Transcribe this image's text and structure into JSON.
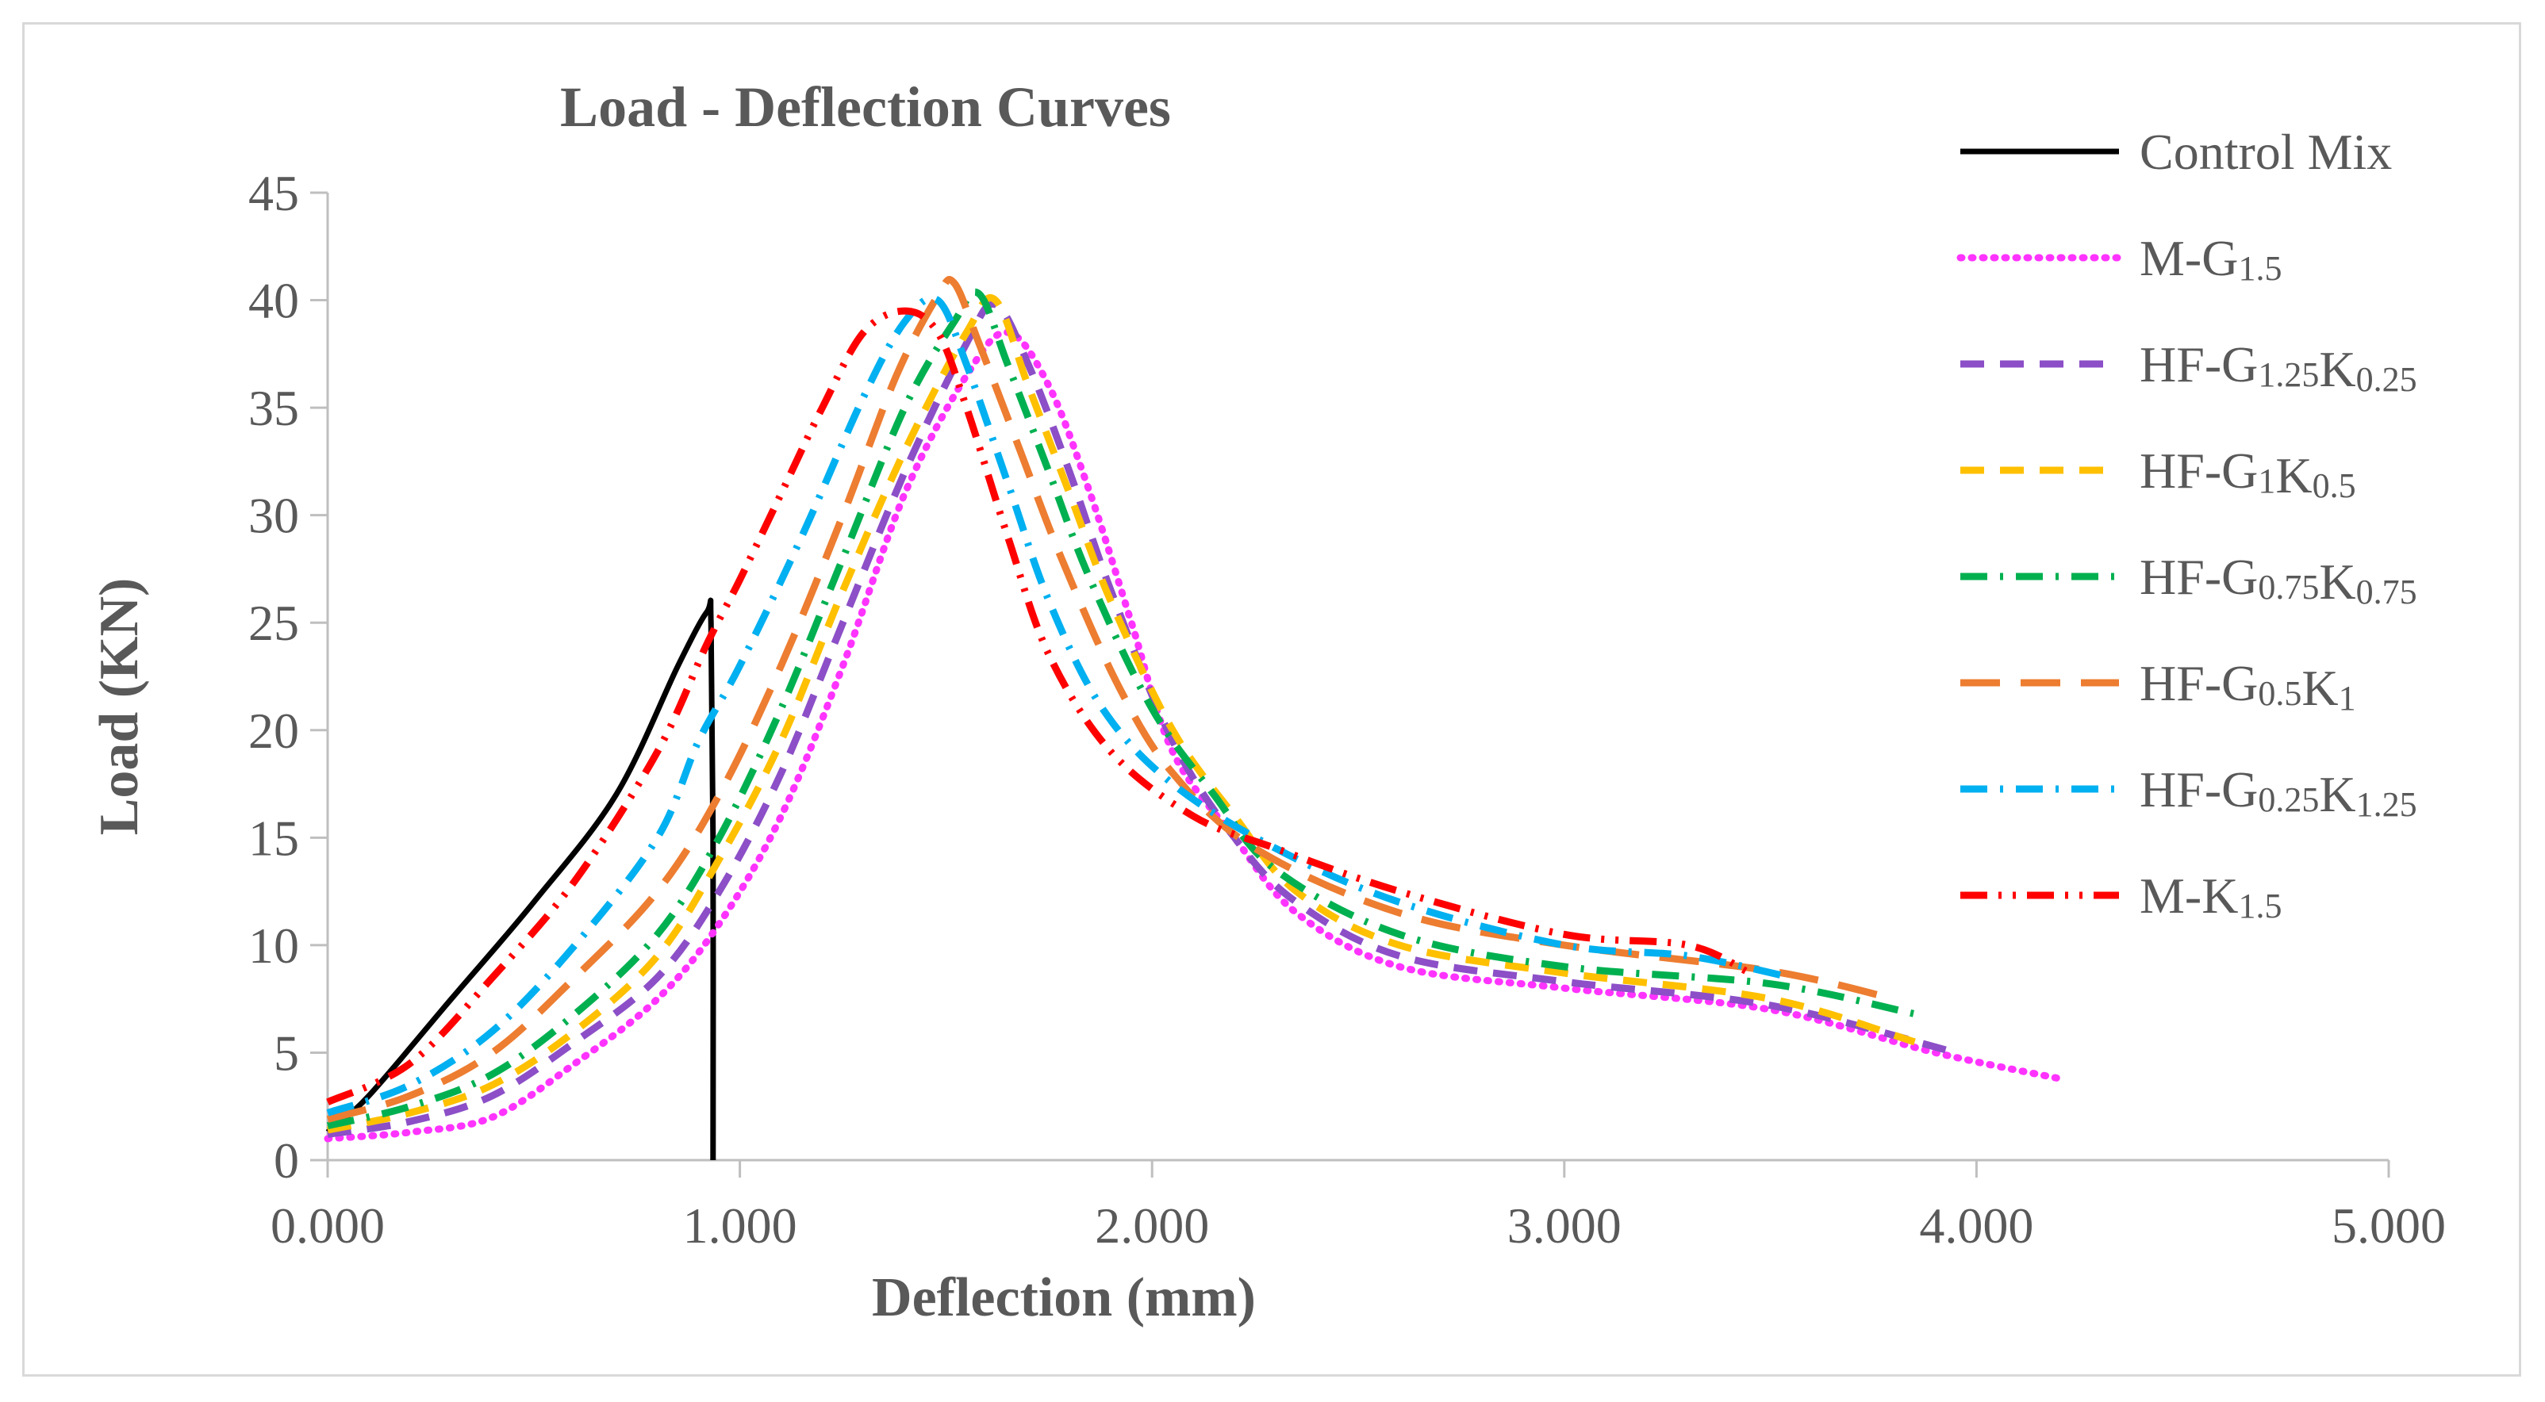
{
  "chart_data": {
    "type": "line",
    "title": "Load - Deflection Curves",
    "xlabel": "Deflection (mm)",
    "ylabel": "Load (KN)",
    "xlim": [
      0,
      5
    ],
    "ylim": [
      0,
      45
    ],
    "x_ticks": [
      0,
      1,
      2,
      3,
      4,
      5
    ],
    "x_tick_labels": [
      "0.000",
      "1.000",
      "2.000",
      "3.000",
      "4.000",
      "5.000"
    ],
    "y_ticks": [
      0,
      5,
      10,
      15,
      20,
      25,
      30,
      35,
      40,
      45
    ],
    "y_tick_labels": [
      "0",
      "5",
      "10",
      "15",
      "20",
      "25",
      "30",
      "35",
      "40",
      "45"
    ],
    "grid": false,
    "legend_position": "right",
    "series": [
      {
        "name": "Control Mix",
        "label_main": "Control Mix",
        "label_parts": [
          {
            "t": "Control Mix",
            "sub": false
          }
        ],
        "color": "#000000",
        "style": "solid",
        "points": [
          [
            0.0,
            1.3
          ],
          [
            0.1,
            3.0
          ],
          [
            0.3,
            7.5
          ],
          [
            0.5,
            12.0
          ],
          [
            0.7,
            17.0
          ],
          [
            0.85,
            23.0
          ],
          [
            0.92,
            25.5
          ],
          [
            0.93,
            25.0
          ],
          [
            0.935,
            15.0
          ],
          [
            0.935,
            0.0
          ]
        ]
      },
      {
        "name": "M-G1.5",
        "label_main": "M-G1.5",
        "label_parts": [
          {
            "t": "M-G",
            "sub": false
          },
          {
            "t": "1.5",
            "sub": true
          }
        ],
        "color": "#ff33ff",
        "style": "dot",
        "points": [
          [
            0.0,
            1.0
          ],
          [
            0.2,
            1.3
          ],
          [
            0.4,
            2.0
          ],
          [
            0.6,
            4.5
          ],
          [
            0.8,
            7.5
          ],
          [
            0.95,
            11.0
          ],
          [
            1.1,
            16.0
          ],
          [
            1.25,
            23.0
          ],
          [
            1.4,
            31.0
          ],
          [
            1.55,
            36.5
          ],
          [
            1.65,
            38.5
          ],
          [
            1.75,
            36.0
          ],
          [
            1.85,
            31.0
          ],
          [
            1.95,
            25.0
          ],
          [
            2.05,
            19.0
          ],
          [
            2.2,
            15.0
          ],
          [
            2.35,
            11.5
          ],
          [
            2.6,
            9.0
          ],
          [
            3.0,
            8.0
          ],
          [
            3.5,
            7.0
          ],
          [
            3.9,
            5.0
          ],
          [
            4.2,
            3.8
          ]
        ]
      },
      {
        "name": "HF-G1.25K0.25",
        "label_main": "HF-G1.25K0.25",
        "label_parts": [
          {
            "t": "HF-G",
            "sub": false
          },
          {
            "t": "1.25",
            "sub": true
          },
          {
            "t": "K",
            "sub": false
          },
          {
            "t": "0.25",
            "sub": true
          }
        ],
        "color": "#8c4fc7",
        "style": "dash",
        "points": [
          [
            0.0,
            1.2
          ],
          [
            0.2,
            1.8
          ],
          [
            0.4,
            3.0
          ],
          [
            0.6,
            5.5
          ],
          [
            0.8,
            8.5
          ],
          [
            0.95,
            12.5
          ],
          [
            1.1,
            18.0
          ],
          [
            1.25,
            25.0
          ],
          [
            1.4,
            32.0
          ],
          [
            1.55,
            38.0
          ],
          [
            1.62,
            39.8
          ],
          [
            1.7,
            37.0
          ],
          [
            1.8,
            32.0
          ],
          [
            1.9,
            26.5
          ],
          [
            2.05,
            19.5
          ],
          [
            2.2,
            15.0
          ],
          [
            2.35,
            12.0
          ],
          [
            2.6,
            9.5
          ],
          [
            3.0,
            8.3
          ],
          [
            3.5,
            7.2
          ],
          [
            3.95,
            5.0
          ]
        ]
      },
      {
        "name": "HF-G1K0.5",
        "label_main": "HF-G1K0.5",
        "label_parts": [
          {
            "t": "HF-G",
            "sub": false
          },
          {
            "t": "1",
            "sub": true
          },
          {
            "t": "K",
            "sub": false
          },
          {
            "t": "0.5",
            "sub": true
          }
        ],
        "color": "#ffc000",
        "style": "dash",
        "points": [
          [
            0.0,
            1.4
          ],
          [
            0.2,
            2.2
          ],
          [
            0.4,
            3.5
          ],
          [
            0.6,
            6.0
          ],
          [
            0.8,
            9.5
          ],
          [
            0.95,
            14.0
          ],
          [
            1.1,
            19.5
          ],
          [
            1.25,
            26.5
          ],
          [
            1.4,
            33.0
          ],
          [
            1.55,
            38.5
          ],
          [
            1.62,
            40.0
          ],
          [
            1.7,
            36.0
          ],
          [
            1.8,
            31.0
          ],
          [
            1.9,
            26.0
          ],
          [
            2.05,
            20.0
          ],
          [
            2.2,
            16.0
          ],
          [
            2.35,
            12.5
          ],
          [
            2.6,
            10.0
          ],
          [
            3.0,
            8.7
          ],
          [
            3.5,
            7.5
          ],
          [
            3.85,
            5.5
          ]
        ]
      },
      {
        "name": "HF-G0.75K0.75",
        "label_main": "HF-G0.75K0.75",
        "label_parts": [
          {
            "t": "HF-G",
            "sub": false
          },
          {
            "t": "0.75",
            "sub": true
          },
          {
            "t": "K",
            "sub": false
          },
          {
            "t": "0.75",
            "sub": true
          }
        ],
        "color": "#00b050",
        "style": "dashdot",
        "points": [
          [
            0.0,
            1.6
          ],
          [
            0.2,
            2.5
          ],
          [
            0.4,
            4.0
          ],
          [
            0.6,
            6.8
          ],
          [
            0.8,
            10.5
          ],
          [
            0.95,
            15.0
          ],
          [
            1.1,
            21.0
          ],
          [
            1.25,
            28.0
          ],
          [
            1.4,
            35.0
          ],
          [
            1.52,
            39.0
          ],
          [
            1.58,
            40.3
          ],
          [
            1.65,
            37.0
          ],
          [
            1.75,
            32.0
          ],
          [
            1.85,
            27.0
          ],
          [
            2.0,
            21.0
          ],
          [
            2.15,
            17.0
          ],
          [
            2.3,
            13.5
          ],
          [
            2.6,
            10.5
          ],
          [
            3.0,
            9.0
          ],
          [
            3.5,
            8.2
          ],
          [
            3.85,
            6.8
          ]
        ]
      },
      {
        "name": "HF-G0.5K1",
        "label_main": "HF-G0.5K1",
        "label_parts": [
          {
            "t": "HF-G",
            "sub": false
          },
          {
            "t": "0.5",
            "sub": true
          },
          {
            "t": "K",
            "sub": false
          },
          {
            "t": "1",
            "sub": true
          }
        ],
        "color": "#ed7d31",
        "style": "longdash",
        "points": [
          [
            0.0,
            1.9
          ],
          [
            0.2,
            3.0
          ],
          [
            0.4,
            5.0
          ],
          [
            0.6,
            8.5
          ],
          [
            0.8,
            12.5
          ],
          [
            0.95,
            17.0
          ],
          [
            1.1,
            23.0
          ],
          [
            1.25,
            30.0
          ],
          [
            1.38,
            36.5
          ],
          [
            1.48,
            40.2
          ],
          [
            1.52,
            40.8
          ],
          [
            1.58,
            38.0
          ],
          [
            1.68,
            33.0
          ],
          [
            1.78,
            28.0
          ],
          [
            1.92,
            22.0
          ],
          [
            2.05,
            18.0
          ],
          [
            2.25,
            14.5
          ],
          [
            2.6,
            11.5
          ],
          [
            3.0,
            10.0
          ],
          [
            3.5,
            8.8
          ],
          [
            3.8,
            7.5
          ]
        ]
      },
      {
        "name": "HF-G0.25K1.25",
        "label_main": "HF-G0.25K1.25",
        "label_parts": [
          {
            "t": "HF-G",
            "sub": false
          },
          {
            "t": "0.25",
            "sub": true
          },
          {
            "t": "K",
            "sub": false
          },
          {
            "t": "1.25",
            "sub": true
          }
        ],
        "color": "#00b0f0",
        "style": "dashdot",
        "points": [
          [
            0.0,
            2.2
          ],
          [
            0.2,
            3.5
          ],
          [
            0.4,
            6.0
          ],
          [
            0.6,
            10.0
          ],
          [
            0.8,
            15.0
          ],
          [
            0.9,
            19.5
          ],
          [
            1.0,
            23.0
          ],
          [
            1.15,
            29.0
          ],
          [
            1.3,
            35.5
          ],
          [
            1.4,
            39.0
          ],
          [
            1.48,
            40.0
          ],
          [
            1.55,
            37.0
          ],
          [
            1.65,
            31.5
          ],
          [
            1.75,
            26.0
          ],
          [
            1.88,
            21.0
          ],
          [
            2.05,
            17.5
          ],
          [
            2.3,
            14.5
          ],
          [
            2.6,
            12.0
          ],
          [
            3.0,
            10.0
          ],
          [
            3.3,
            9.5
          ],
          [
            3.55,
            8.5
          ]
        ]
      },
      {
        "name": "M-K1.5",
        "label_main": "M-K1.5",
        "label_parts": [
          {
            "t": "M-K",
            "sub": false
          },
          {
            "t": "1.5",
            "sub": true
          }
        ],
        "color": "#ff0000",
        "style": "dashdotdot",
        "points": [
          [
            0.0,
            2.7
          ],
          [
            0.2,
            4.5
          ],
          [
            0.4,
            8.5
          ],
          [
            0.6,
            13.0
          ],
          [
            0.8,
            19.0
          ],
          [
            0.92,
            24.0
          ],
          [
            1.0,
            27.0
          ],
          [
            1.1,
            31.0
          ],
          [
            1.2,
            35.0
          ],
          [
            1.3,
            38.5
          ],
          [
            1.4,
            39.5
          ],
          [
            1.48,
            38.5
          ],
          [
            1.55,
            35.0
          ],
          [
            1.65,
            29.0
          ],
          [
            1.75,
            23.5
          ],
          [
            1.9,
            19.0
          ],
          [
            2.1,
            16.0
          ],
          [
            2.3,
            14.5
          ],
          [
            2.6,
            12.5
          ],
          [
            3.0,
            10.5
          ],
          [
            3.3,
            10.0
          ],
          [
            3.45,
            8.7
          ]
        ]
      }
    ]
  }
}
